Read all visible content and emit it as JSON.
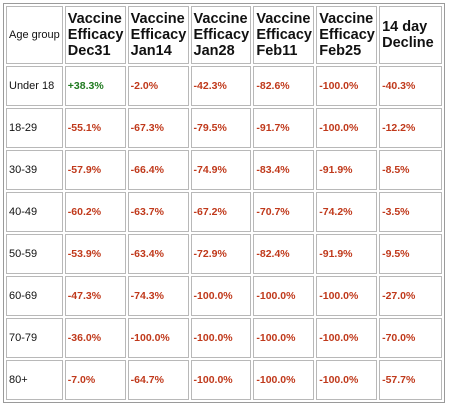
{
  "table": {
    "corner_label": "Age group",
    "columns": [
      {
        "line1": "Vaccine",
        "line2": "Efficacy",
        "line3": "Dec31"
      },
      {
        "line1": "Vaccine",
        "line2": "Efficacy",
        "line3": "Jan14"
      },
      {
        "line1": "Vaccine",
        "line2": "Efficacy",
        "line3": "Jan28"
      },
      {
        "line1": "Vaccine",
        "line2": "Efficacy",
        "line3": "Feb11"
      },
      {
        "line1": "Vaccine",
        "line2": "Efficacy",
        "line3": "Feb25"
      },
      {
        "line1": "14 day",
        "line2": "Decline",
        "line3": ""
      }
    ],
    "rows": [
      {
        "age": "Under 18",
        "values": [
          "+38.3%",
          "-2.0%",
          "-42.3%",
          "-82.6%",
          "-100.0%",
          "-40.3%"
        ]
      },
      {
        "age": "18-29",
        "values": [
          "-55.1%",
          "-67.3%",
          "-79.5%",
          "-91.7%",
          "-100.0%",
          "-12.2%"
        ]
      },
      {
        "age": "30-39",
        "values": [
          "-57.9%",
          "-66.4%",
          "-74.9%",
          "-83.4%",
          "-91.9%",
          "-8.5%"
        ]
      },
      {
        "age": "40-49",
        "values": [
          "-60.2%",
          "-63.7%",
          "-67.2%",
          "-70.7%",
          "-74.2%",
          "-3.5%"
        ]
      },
      {
        "age": "50-59",
        "values": [
          "-53.9%",
          "-63.4%",
          "-72.9%",
          "-82.4%",
          "-91.9%",
          "-9.5%"
        ]
      },
      {
        "age": "60-69",
        "values": [
          "-47.3%",
          "-74.3%",
          "-100.0%",
          "-100.0%",
          "-100.0%",
          "-27.0%"
        ]
      },
      {
        "age": "70-79",
        "values": [
          "-36.0%",
          "-100.0%",
          "-100.0%",
          "-100.0%",
          "-100.0%",
          "-70.0%"
        ]
      },
      {
        "age": "80+",
        "values": [
          "-7.0%",
          "-64.7%",
          "-100.0%",
          "-100.0%",
          "-100.0%",
          "-57.7%"
        ]
      }
    ]
  },
  "colors": {
    "negative": "#c0391b",
    "positive": "#1f7a1f",
    "text": "#111111",
    "border": "#b8b8b8"
  }
}
